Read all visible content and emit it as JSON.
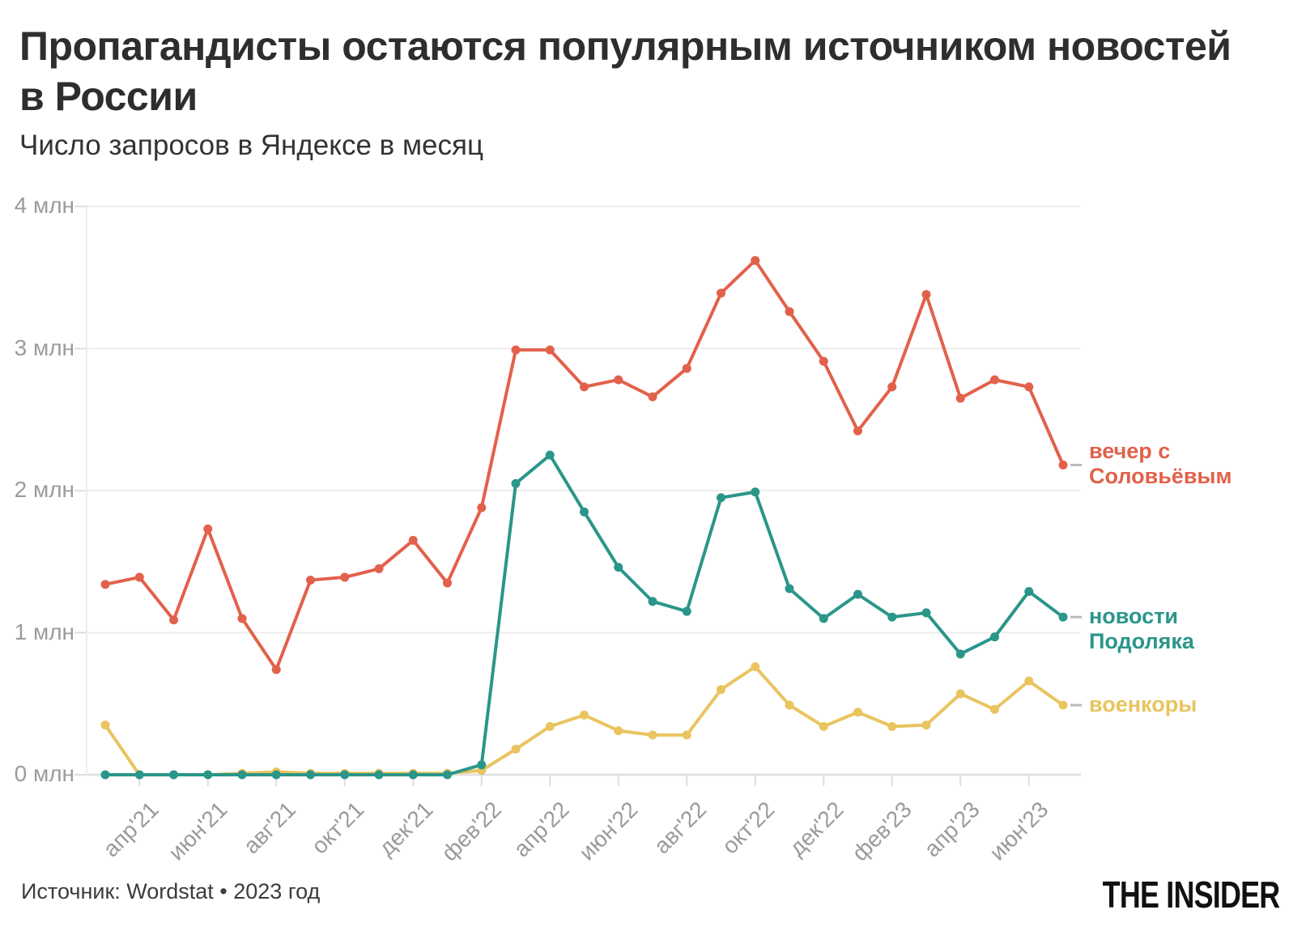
{
  "header": {
    "title": "Пропагандисты остаются популярным источником новостей в России",
    "subtitle": "Число запросов в Яндексе в месяц"
  },
  "footer": {
    "source": "Источник: Wordstat • 2023 год",
    "logo": "THE INSIDER"
  },
  "chart_data": {
    "type": "line",
    "title": "Пропагандисты остаются популярным источником новостей в России",
    "subtitle": "Число запросов в Яндексе в месяц",
    "unit": "млн запросов в Яндексе в месяц",
    "grid": "horizontal",
    "legend_position": "right of line ends",
    "ylim": [
      0,
      4
    ],
    "y_ticks": [
      "0 млн",
      "1 млн",
      "2 млн",
      "3 млн",
      "4 млн"
    ],
    "x": [
      "мар'21",
      "апр'21",
      "май'21",
      "июн'21",
      "июл'21",
      "авг'21",
      "сен'21",
      "окт'21",
      "ноя'21",
      "дек'21",
      "янв'22",
      "фев'22",
      "мар'22",
      "апр'22",
      "май'22",
      "июн'22",
      "июл'22",
      "авг'22",
      "сен'22",
      "окт'22",
      "ноя'22",
      "дек'22",
      "янв'23",
      "фев'23",
      "мар'23",
      "апр'23",
      "май'23",
      "июн'23",
      "июл'23"
    ],
    "x_tick_labels": [
      "апр'21",
      "июн'21",
      "авг'21",
      "окт'21",
      "дек'21",
      "фев'22",
      "апр'22",
      "июн'22",
      "авг'22",
      "окт'22",
      "дек'22",
      "фев'23",
      "апр'23",
      "июн'23"
    ],
    "series": [
      {
        "name": "вечер с Соловьёвым",
        "color": "#E2614B",
        "values": [
          1.34,
          1.39,
          1.09,
          1.73,
          1.1,
          0.74,
          1.37,
          1.39,
          1.45,
          1.65,
          1.35,
          1.88,
          2.99,
          2.99,
          2.73,
          2.78,
          2.66,
          2.86,
          3.39,
          3.62,
          3.26,
          2.91,
          2.42,
          2.73,
          3.38,
          2.65,
          2.78,
          2.73,
          2.18
        ]
      },
      {
        "name": "новости Подоляка",
        "color": "#2A968A",
        "values": [
          0,
          0,
          0,
          0,
          0,
          0,
          0,
          0,
          0,
          0,
          0,
          0.07,
          2.05,
          2.25,
          1.85,
          1.46,
          1.22,
          1.15,
          1.95,
          1.99,
          1.31,
          1.1,
          1.27,
          1.11,
          1.14,
          0.85,
          0.97,
          1.29,
          1.11
        ]
      },
      {
        "name": "военкоры",
        "color": "#E9C45F",
        "values": [
          0.35,
          0,
          0,
          0,
          0.01,
          0.02,
          0.01,
          0.01,
          0.01,
          0.01,
          0.01,
          0.03,
          0.18,
          0.34,
          0.42,
          0.31,
          0.28,
          0.28,
          0.6,
          0.76,
          0.49,
          0.34,
          0.44,
          0.34,
          0.35,
          0.57,
          0.46,
          0.66,
          0.49
        ]
      }
    ]
  }
}
